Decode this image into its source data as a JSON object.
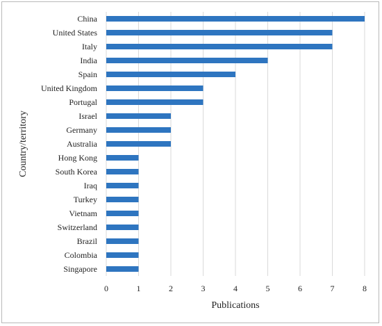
{
  "chart_data": {
    "type": "bar",
    "orientation": "horizontal",
    "categories": [
      "China",
      "United States",
      "Italy",
      "India",
      "Spain",
      "United Kingdom",
      "Portugal",
      "Israel",
      "Germany",
      "Australia",
      "Hong Kong",
      "South Korea",
      "Iraq",
      "Turkey",
      "Vietnam",
      "Switzerland",
      "Brazil",
      "Colombia",
      "Singapore"
    ],
    "values": [
      8,
      7,
      7,
      5,
      4,
      3,
      3,
      2,
      2,
      2,
      1,
      1,
      1,
      1,
      1,
      1,
      1,
      1,
      1
    ],
    "title": "",
    "xlabel": "Publications",
    "ylabel": "Country/territory",
    "xlim": [
      0,
      8
    ],
    "xticks": [
      0,
      1,
      2,
      3,
      4,
      5,
      6,
      7,
      8
    ],
    "grid": "vertical",
    "legend": "none",
    "bar_color": "#2e75c0"
  }
}
